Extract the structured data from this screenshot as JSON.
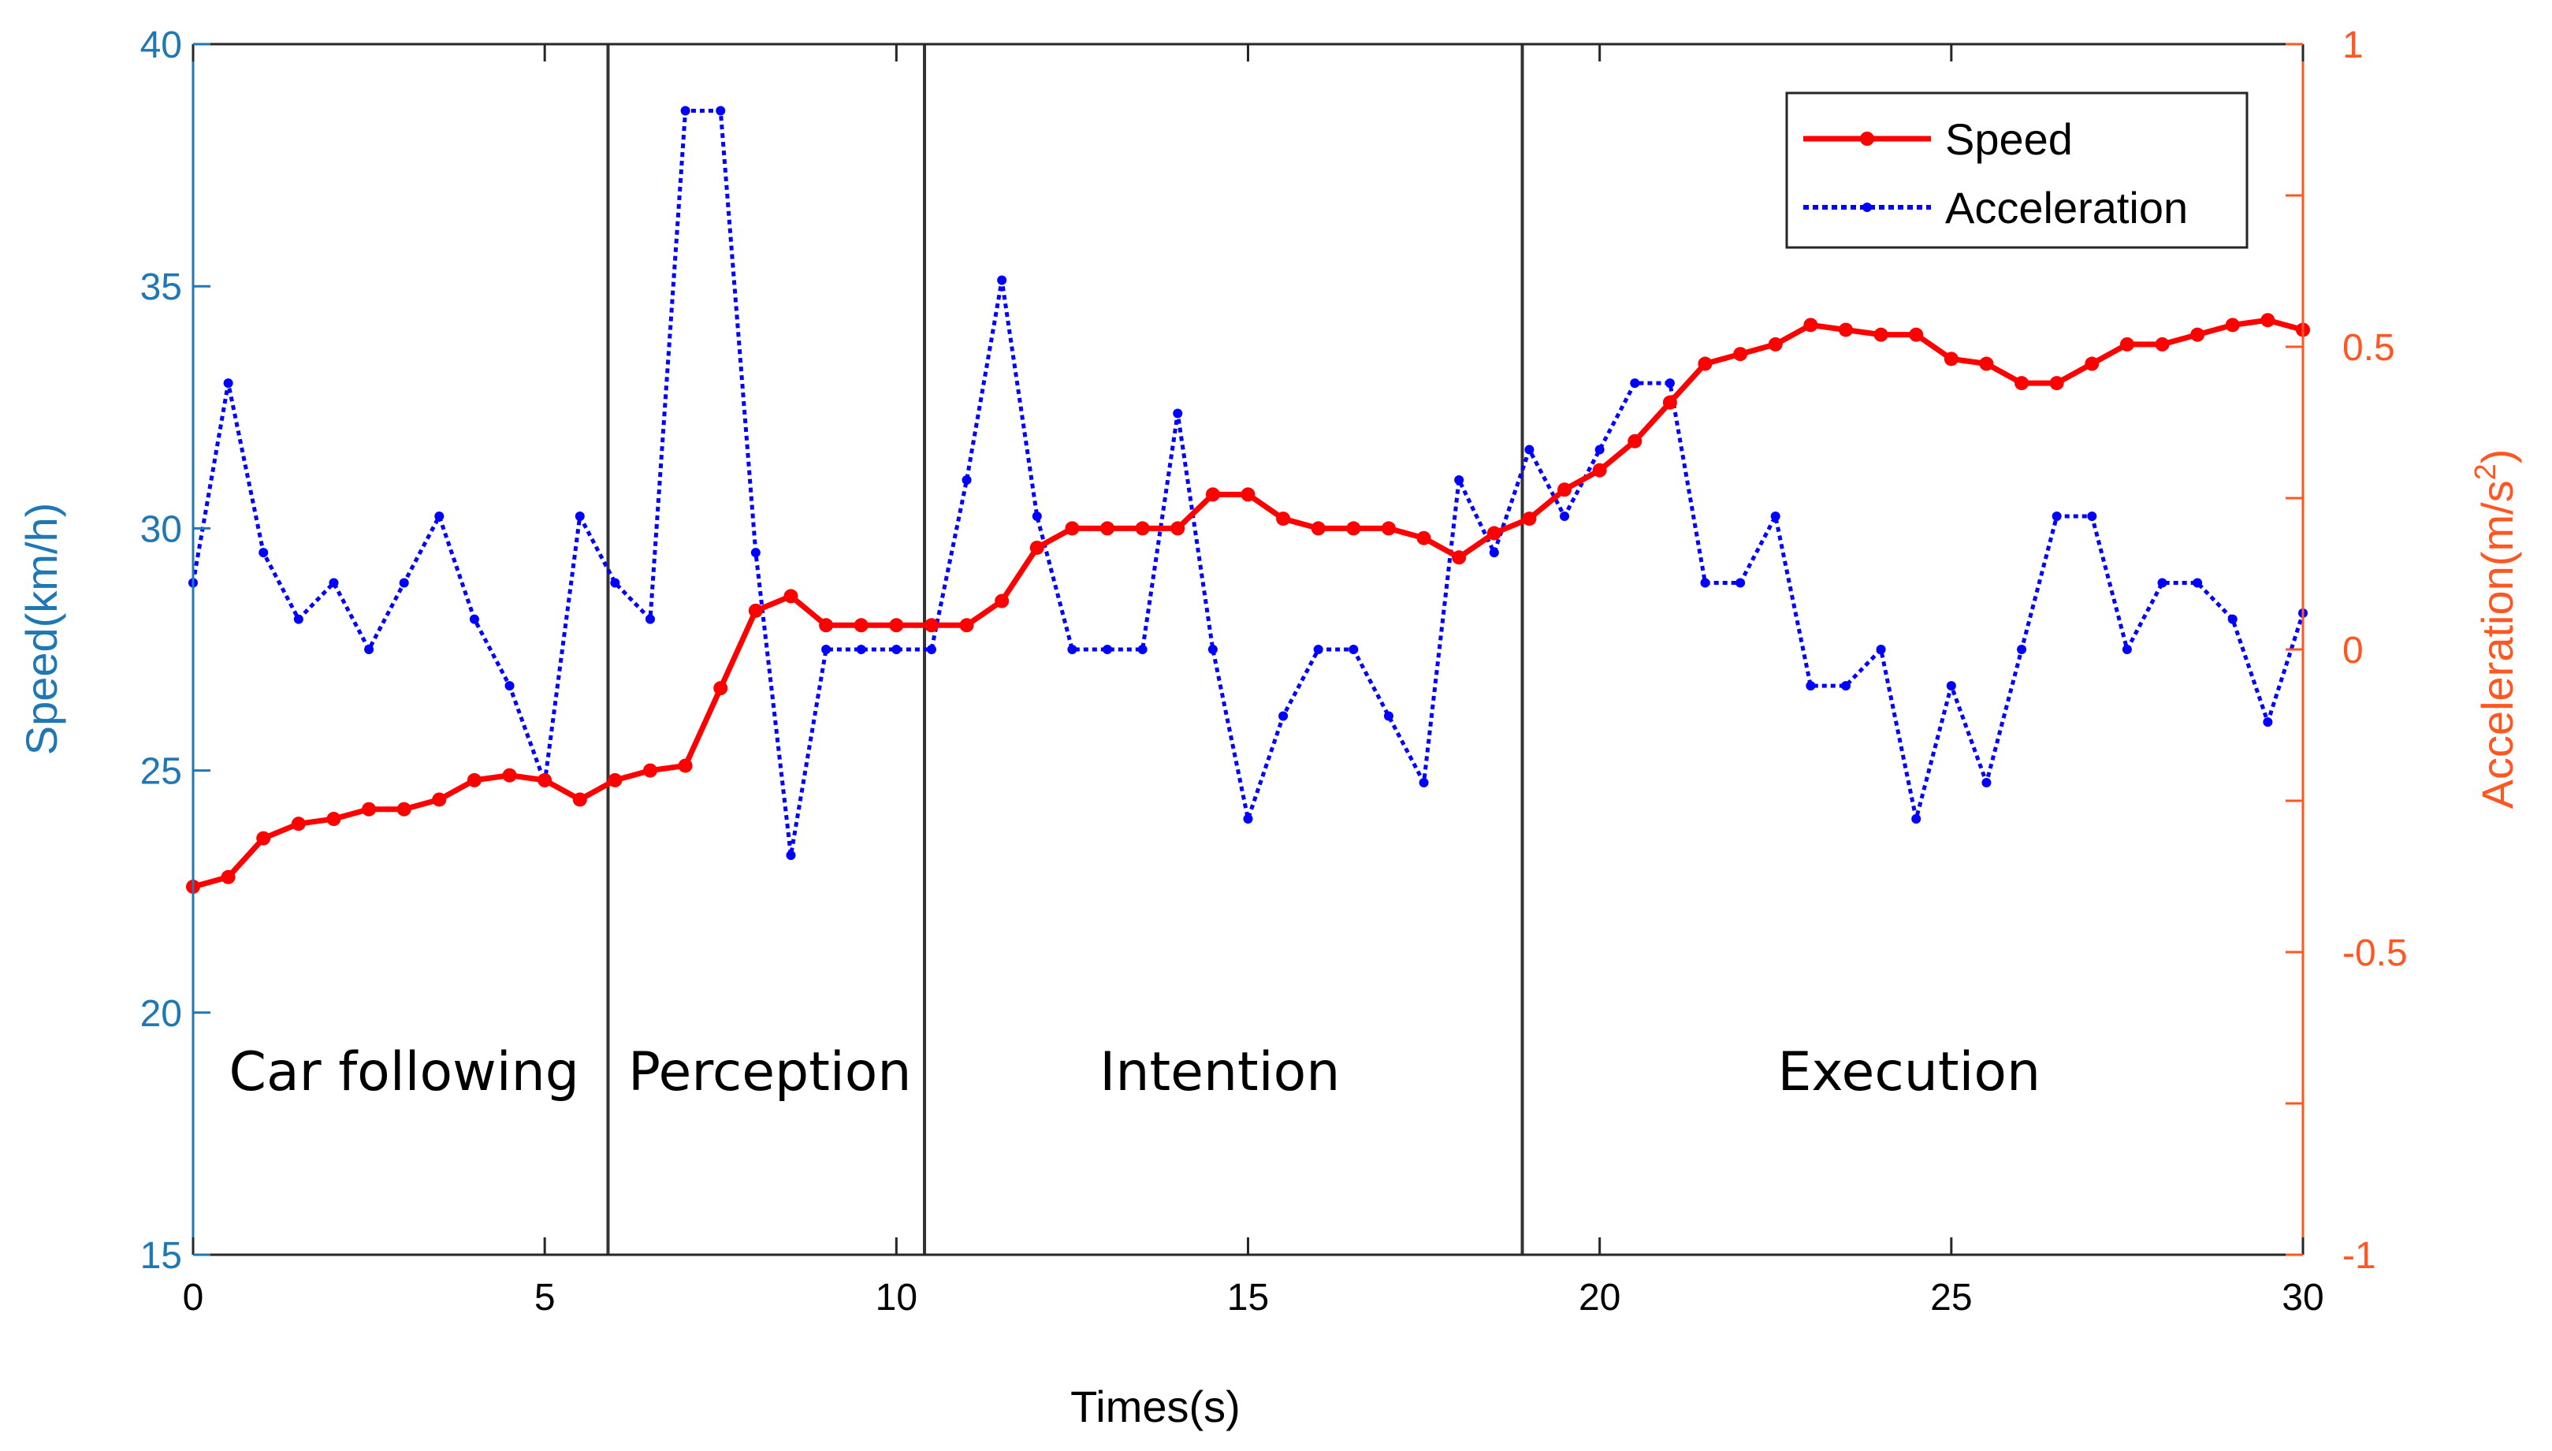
{
  "chart_data": {
    "type": "line",
    "xlabel": "Times(s)",
    "ylabel_left": "Speed(km/h)",
    "ylabel_right_base": "Acceleration(m/s",
    "ylabel_right_sup": "2",
    "ylabel_right_close": ")",
    "xlim": [
      0,
      30
    ],
    "ylim_left": [
      15,
      40
    ],
    "ylim_right": [
      -1,
      1
    ],
    "x_ticks": [
      0,
      5,
      10,
      15,
      20,
      25,
      30
    ],
    "x_tick_labels": [
      "0",
      "5",
      "10",
      "15",
      "20",
      "25",
      "30"
    ],
    "left_ticks": [
      15,
      20,
      25,
      30,
      35,
      40
    ],
    "left_tick_labels": [
      "15",
      "20",
      "25",
      "30",
      "35",
      "40"
    ],
    "right_ticks": [
      -1,
      -0.5,
      0,
      0.5,
      1
    ],
    "right_tick_labels": [
      "-1",
      "-0.5",
      "0",
      "0.5",
      "1"
    ],
    "phase_boundaries": [
      5.9,
      10.4,
      18.9
    ],
    "phases": [
      {
        "label": "Car following",
        "center": 3.0
      },
      {
        "label": "Perception",
        "center": 8.2
      },
      {
        "label": "Intention",
        "center": 14.6
      },
      {
        "label": "Execution",
        "center": 24.4
      }
    ],
    "colors": {
      "speed": "#ff0000",
      "acceleration": "#0000ff",
      "left_axis": "#1f77b4",
      "right_axis": "#ff5722"
    },
    "series": [
      {
        "name": "Speed",
        "axis": "left",
        "x": [
          0,
          0.5,
          1,
          1.5,
          2,
          2.5,
          3,
          3.5,
          4,
          4.5,
          5,
          5.5,
          6,
          6.5,
          7,
          7.5,
          8,
          8.5,
          9,
          9.5,
          10,
          10.5,
          11,
          11.5,
          12,
          12.5,
          13,
          13.5,
          14,
          14.5,
          15,
          15.5,
          16,
          16.5,
          17,
          17.5,
          18,
          18.5,
          19,
          19.5,
          20,
          20.5,
          21,
          21.5,
          22,
          22.5,
          23,
          23.5,
          24,
          24.5,
          25,
          25.5,
          26,
          26.5,
          27,
          27.5,
          28,
          28.5,
          29,
          29.5,
          30
        ],
        "values": [
          22.6,
          22.8,
          23.6,
          23.9,
          24.0,
          24.2,
          24.2,
          24.4,
          24.8,
          24.9,
          24.8,
          24.4,
          24.8,
          25.0,
          25.1,
          26.7,
          28.3,
          28.6,
          28.0,
          28.0,
          28.0,
          28.0,
          28.0,
          28.5,
          29.6,
          30.0,
          30.0,
          30.0,
          30.0,
          30.7,
          30.7,
          30.2,
          30.0,
          30.0,
          30.0,
          29.8,
          29.4,
          29.9,
          30.2,
          30.8,
          31.2,
          31.8,
          32.6,
          33.4,
          33.6,
          33.8,
          34.2,
          34.1,
          34.0,
          34.0,
          33.5,
          33.4,
          33.0,
          33.0,
          33.4,
          33.8,
          33.8,
          34.0,
          34.2,
          34.3,
          34.1
        ]
      },
      {
        "name": "Acceleration",
        "axis": "right",
        "x": [
          0,
          0.5,
          1,
          1.5,
          2,
          2.5,
          3,
          3.5,
          4,
          4.5,
          5,
          5.5,
          6,
          6.5,
          7,
          7.5,
          8,
          8.5,
          9,
          9.5,
          10,
          10.5,
          11,
          11.5,
          12,
          12.5,
          13,
          13.5,
          14,
          14.5,
          15,
          15.5,
          16,
          16.5,
          17,
          17.5,
          18,
          18.5,
          19,
          19.5,
          20,
          20.5,
          21,
          21.5,
          22,
          22.5,
          23,
          23.5,
          24,
          24.5,
          25,
          25.5,
          26,
          26.5,
          27,
          27.5,
          28,
          28.5,
          29,
          29.5,
          30
        ],
        "values": [
          0.11,
          0.44,
          0.16,
          0.05,
          0.11,
          0.0,
          0.11,
          0.22,
          0.05,
          -0.06,
          -0.22,
          0.22,
          0.11,
          0.05,
          0.89,
          0.89,
          0.16,
          -0.34,
          0.0,
          0.0,
          0.0,
          0.0,
          0.28,
          0.61,
          0.22,
          0.0,
          0.0,
          0.0,
          0.39,
          0.0,
          -0.28,
          -0.11,
          0.0,
          0.0,
          -0.11,
          -0.22,
          0.28,
          0.16,
          0.33,
          0.22,
          0.33,
          0.44,
          0.44,
          0.11,
          0.11,
          0.22,
          -0.06,
          -0.06,
          0.0,
          -0.28,
          -0.06,
          -0.22,
          0.0,
          0.22,
          0.22,
          0.0,
          0.11,
          0.11,
          0.05,
          -0.12,
          0.06
        ]
      }
    ],
    "legend": {
      "position": "top-right",
      "entries": [
        "Speed",
        "Acceleration"
      ]
    }
  }
}
